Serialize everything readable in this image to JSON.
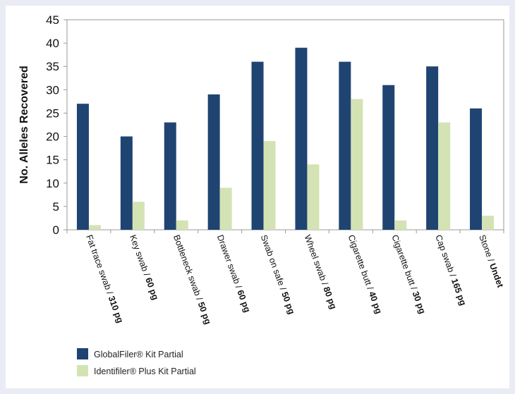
{
  "chart_data": {
    "type": "bar",
    "ylabel": "No. Alleles Recovered",
    "xlabel": "",
    "ylim": [
      0,
      45
    ],
    "yticks": [
      0,
      5,
      10,
      15,
      20,
      25,
      30,
      35,
      40,
      45
    ],
    "grid": false,
    "legend_position": "bottom-left",
    "categories": [
      {
        "label": "Fat trace swab / ",
        "amount": "310 pg"
      },
      {
        "label": "Key swab / ",
        "amount": "60 pg"
      },
      {
        "label": "Bottleneck swab / ",
        "amount": "50 pg"
      },
      {
        "label": "Drawer swab / ",
        "amount": "60 pg"
      },
      {
        "label": "Swab on safe / ",
        "amount": "50 pg"
      },
      {
        "label": "Wheel swab / ",
        "amount": "80 pg"
      },
      {
        "label": "Cigarette butt / ",
        "amount": "40 pg"
      },
      {
        "label": "Cigarette butt / ",
        "amount": "30 pg"
      },
      {
        "label": "Cap swab / ",
        "amount": "165 pg"
      },
      {
        "label": "Stone / ",
        "amount": "Undet"
      }
    ],
    "series": [
      {
        "name": "GlobalFiler® Kit Partial",
        "color": "#1f4472",
        "values": [
          27,
          20,
          23,
          29,
          36,
          39,
          36,
          31,
          35,
          26
        ]
      },
      {
        "name": "Identifiler® Plus Kit Partial",
        "color": "#d3e3b3",
        "values": [
          1,
          6,
          2,
          9,
          19,
          14,
          28,
          2,
          23,
          3
        ]
      }
    ]
  }
}
